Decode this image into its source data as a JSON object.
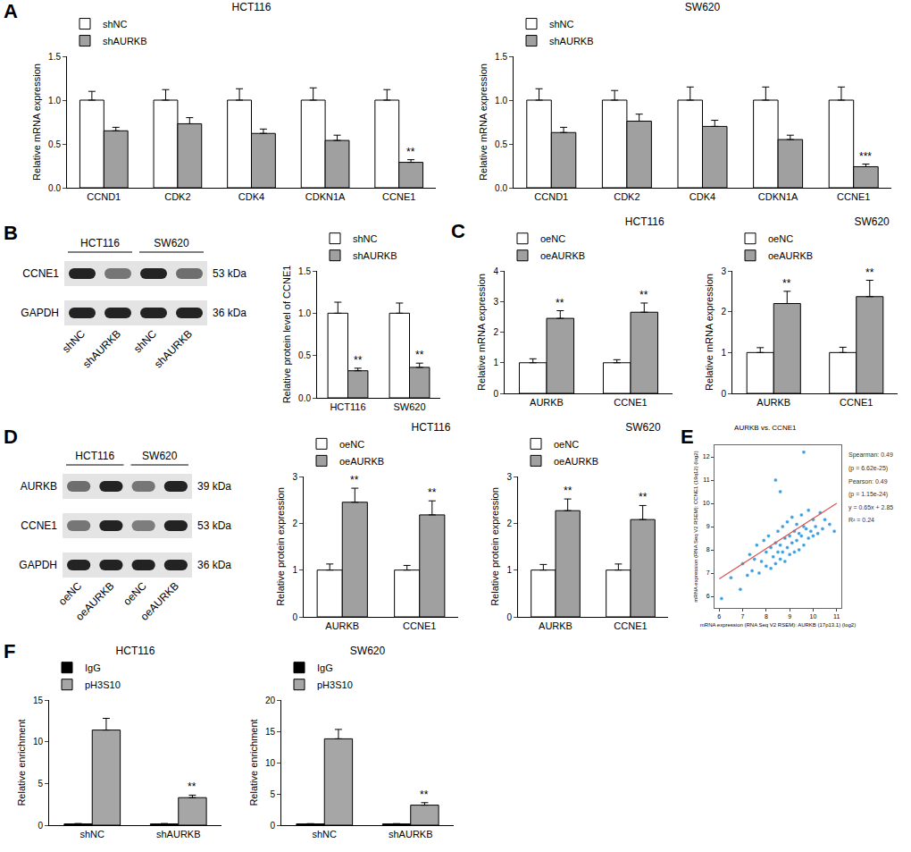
{
  "panel_labels": [
    "A",
    "B",
    "C",
    "D",
    "E",
    "F"
  ],
  "chart_data": [
    {
      "type": "bar",
      "title": "HCT116",
      "ylabel": "Relative mRNA expression",
      "categories": [
        "CCND1",
        "CDK2",
        "CDK4",
        "CDKN1A",
        "CCNE1"
      ],
      "series": [
        {
          "name": "shNC",
          "color": "#ffffff",
          "values": [
            1.0,
            1.0,
            1.0,
            1.0,
            1.0
          ],
          "errors": [
            0.1,
            0.12,
            0.13,
            0.14,
            0.12
          ],
          "significance": [
            null,
            null,
            null,
            null,
            null
          ]
        },
        {
          "name": "shAURKB",
          "color": "#a0a0a0",
          "values": [
            0.65,
            0.73,
            0.62,
            0.54,
            0.29
          ],
          "errors": [
            0.04,
            0.07,
            0.05,
            0.06,
            0.03
          ],
          "significance": [
            null,
            null,
            null,
            null,
            "**"
          ]
        }
      ],
      "ylim": [
        0,
        1.5
      ],
      "yticks": [
        {
          "value": 0,
          "label": "0.0"
        },
        {
          "value": 0.5,
          "label": "0.5"
        },
        {
          "value": 1,
          "label": "1.0"
        },
        {
          "value": 1.5,
          "label": "1.5"
        }
      ],
      "legend": "upper left"
    },
    {
      "type": "bar",
      "title": "SW620",
      "ylabel": "Relative mRNA expression",
      "categories": [
        "CCND1",
        "CDK2",
        "CDK4",
        "CDKN1A",
        "CCNE1"
      ],
      "series": [
        {
          "name": "shNC",
          "color": "#ffffff",
          "values": [
            1.0,
            1.0,
            1.0,
            1.0,
            1.0
          ],
          "errors": [
            0.13,
            0.11,
            0.15,
            0.15,
            0.15
          ],
          "significance": [
            null,
            null,
            null,
            null,
            null
          ]
        },
        {
          "name": "shAURKB",
          "color": "#a0a0a0",
          "values": [
            0.63,
            0.76,
            0.7,
            0.55,
            0.24
          ],
          "errors": [
            0.06,
            0.08,
            0.07,
            0.05,
            0.03
          ],
          "significance": [
            null,
            null,
            null,
            null,
            "***"
          ]
        }
      ],
      "ylim": [
        0,
        1.5
      ],
      "yticks": [
        {
          "value": 0,
          "label": "0.0"
        },
        {
          "value": 0.5,
          "label": "0.5"
        },
        {
          "value": 1,
          "label": "1.0"
        },
        {
          "value": 1.5,
          "label": "1.5"
        }
      ],
      "legend": "upper left"
    },
    {
      "type": "bar",
      "ylabel": "Relative protein level of CCNE1",
      "categories": [
        "HCT116",
        "SW620"
      ],
      "series": [
        {
          "name": "shNC",
          "color": "#ffffff",
          "values": [
            1.0,
            1.0
          ],
          "errors": [
            0.13,
            0.12
          ],
          "significance": [
            null,
            null
          ]
        },
        {
          "name": "shAURKB",
          "color": "#a0a0a0",
          "values": [
            0.32,
            0.36
          ],
          "errors": [
            0.03,
            0.05
          ],
          "significance": [
            "**",
            "**"
          ]
        }
      ],
      "ylim": [
        0,
        1.5
      ],
      "yticks": [
        {
          "value": 0,
          "label": "0.0"
        },
        {
          "value": 0.5,
          "label": "0.5"
        },
        {
          "value": 1,
          "label": "1.0"
        },
        {
          "value": 1.5,
          "label": "1.5"
        }
      ],
      "legend": "upper left"
    },
    {
      "type": "bar",
      "title": "HCT116",
      "ylabel": "Relative mRNA expression",
      "categories": [
        "AURKB",
        "CCNE1"
      ],
      "series": [
        {
          "name": "oeNC",
          "color": "#ffffff",
          "values": [
            1.0,
            1.0
          ],
          "errors": [
            0.13,
            0.1
          ],
          "significance": [
            null,
            null
          ]
        },
        {
          "name": "oeAURKB",
          "color": "#a0a0a0",
          "values": [
            2.45,
            2.65
          ],
          "errors": [
            0.25,
            0.3
          ],
          "significance": [
            "**",
            "**"
          ]
        }
      ],
      "ylim": [
        0,
        4
      ],
      "yticks": [
        0,
        1,
        2,
        3,
        4
      ],
      "legend": "upper left"
    },
    {
      "type": "bar",
      "title": "SW620",
      "ylabel": "Relative mRNA expression",
      "categories": [
        "AURKB",
        "CCNE1"
      ],
      "series": [
        {
          "name": "oeNC",
          "color": "#ffffff",
          "values": [
            1.0,
            1.0
          ],
          "errors": [
            0.12,
            0.13
          ],
          "significance": [
            null,
            null
          ]
        },
        {
          "name": "oeAURKB",
          "color": "#a0a0a0",
          "values": [
            2.2,
            2.37
          ],
          "errors": [
            0.3,
            0.4
          ],
          "significance": [
            "**",
            "**"
          ]
        }
      ],
      "ylim": [
        0,
        3
      ],
      "yticks": [
        0,
        1,
        2,
        3
      ],
      "legend": "upper left"
    },
    {
      "type": "bar",
      "title": "HCT116",
      "ylabel": "Relative protein expression",
      "categories": [
        "AURKB",
        "CCNE1"
      ],
      "series": [
        {
          "name": "oeNC",
          "color": "#ffffff",
          "values": [
            1.0,
            1.0
          ],
          "errors": [
            0.13,
            0.1
          ],
          "significance": [
            null,
            null
          ]
        },
        {
          "name": "oeAURKB",
          "color": "#a0a0a0",
          "values": [
            2.45,
            2.18
          ],
          "errors": [
            0.3,
            0.3
          ],
          "significance": [
            "**",
            "**"
          ]
        }
      ],
      "ylim": [
        0,
        3
      ],
      "yticks": [
        0,
        1,
        2,
        3
      ],
      "legend": "upper left"
    },
    {
      "type": "bar",
      "title": "SW620",
      "ylabel": "Relative protein expression",
      "categories": [
        "AURKB",
        "CCNE1"
      ],
      "series": [
        {
          "name": "oeNC",
          "color": "#ffffff",
          "values": [
            1.0,
            1.0
          ],
          "errors": [
            0.12,
            0.13
          ],
          "significance": [
            null,
            null
          ]
        },
        {
          "name": "oeAURKB",
          "color": "#a0a0a0",
          "values": [
            2.27,
            2.08
          ],
          "errors": [
            0.25,
            0.3
          ],
          "significance": [
            "**",
            "**"
          ]
        }
      ],
      "ylim": [
        0,
        3
      ],
      "yticks": [
        0,
        1,
        2,
        3
      ],
      "legend": "upper left"
    },
    {
      "type": "scatter",
      "title": "AURKB vs. CCNE1",
      "xlabel": "mRNA expression (RNA Seq V2 RSEM): AURKB (17p13.1) (log2)",
      "ylabel": "mRNA expression (RNA Seq V2 RSEM): CCNE1 (19q12) (log2)",
      "series": [
        {
          "type": "scatter",
          "marker": "circle",
          "color": "#3d9fe0",
          "x": [
            6.1,
            6.5,
            6.9,
            7.0,
            7.2,
            7.3,
            7.4,
            7.5,
            7.6,
            7.7,
            7.8,
            7.9,
            8.0,
            8.0,
            8.1,
            8.2,
            8.2,
            8.3,
            8.4,
            8.4,
            8.5,
            8.5,
            8.6,
            8.6,
            8.7,
            8.7,
            8.8,
            8.8,
            8.9,
            8.9,
            9.0,
            9.0,
            9.1,
            9.1,
            9.2,
            9.2,
            9.3,
            9.3,
            9.4,
            9.4,
            9.5,
            9.5,
            9.6,
            9.6,
            9.7,
            9.8,
            9.8,
            9.9,
            10.0,
            10.0,
            10.1,
            10.2,
            10.3,
            10.4,
            10.5,
            10.7,
            8.4,
            9.6,
            8.6,
            10.9
          ],
          "values": [
            5.9,
            6.8,
            6.3,
            7.4,
            6.9,
            7.8,
            7.1,
            7.6,
            8.2,
            7.0,
            7.5,
            8.4,
            7.3,
            7.9,
            8.6,
            7.2,
            8.1,
            7.7,
            8.3,
            7.4,
            7.9,
            8.8,
            7.6,
            8.2,
            7.9,
            9.0,
            7.5,
            8.5,
            8.1,
            9.2,
            7.8,
            8.6,
            8.3,
            9.4,
            7.9,
            8.8,
            8.4,
            9.1,
            8.0,
            8.7,
            8.6,
            9.5,
            8.2,
            9.0,
            8.9,
            8.5,
            9.7,
            8.8,
            8.6,
            9.3,
            9.0,
            8.7,
            9.6,
            8.9,
            9.3,
            9.1,
            11.0,
            12.2,
            10.5,
            8.8
          ]
        },
        {
          "type": "line",
          "line_style": "solid",
          "color": "#d9534f",
          "x": [
            6,
            11
          ],
          "values": [
            6.75,
            10.0
          ]
        }
      ],
      "annotations": [
        "Spearman: 0.49",
        "(p = 6.62e-25)",
        "Pearson: 0.49",
        "(p = 1.15e-24)",
        "y = 0.65x + 2.85",
        "R² = 0.24"
      ],
      "xlim": [
        5.8,
        11.2
      ],
      "xticks": [
        6,
        7,
        8,
        9,
        10,
        11
      ],
      "ylim": [
        5.5,
        12.5
      ],
      "yticks": [
        6,
        7,
        8,
        9,
        10,
        11,
        12
      ]
    },
    {
      "type": "bar",
      "title": "HCT116",
      "ylabel": "Relative enrichment",
      "categories": [
        "shNC",
        "shAURKB"
      ],
      "series": [
        {
          "name": "IgG",
          "color": "#000000",
          "values": [
            0.15,
            0.15
          ],
          "errors": [
            0.05,
            0.05
          ],
          "significance": [
            null,
            null
          ]
        },
        {
          "name": "pH3S10",
          "color": "#a6a6a6",
          "values": [
            11.4,
            3.3
          ],
          "errors": [
            1.4,
            0.3
          ],
          "significance": [
            null,
            "**"
          ]
        }
      ],
      "ylim": [
        0,
        15
      ],
      "yticks": [
        0,
        5,
        10,
        15
      ],
      "legend": "upper left"
    },
    {
      "type": "bar",
      "title": "SW620",
      "ylabel": "Relative enrichment",
      "categories": [
        "shNC",
        "shAURKB"
      ],
      "series": [
        {
          "name": "IgG",
          "color": "#000000",
          "values": [
            0.2,
            0.2
          ],
          "errors": [
            0.05,
            0.05
          ],
          "significance": [
            null,
            null
          ]
        },
        {
          "name": "pH3S10",
          "color": "#a6a6a6",
          "values": [
            13.8,
            3.2
          ],
          "errors": [
            1.5,
            0.4
          ],
          "significance": [
            null,
            "**"
          ]
        }
      ],
      "ylim": [
        0,
        20
      ],
      "yticks": [
        0,
        5,
        10,
        15,
        20
      ],
      "legend": "upper left"
    }
  ],
  "blots": [
    {
      "groups": [
        "HCT116",
        "SW620"
      ],
      "lanes": [
        "shNC",
        "shAURKB",
        "shNC",
        "shAURKB"
      ],
      "rows": [
        {
          "protein": "CCNE1",
          "size": "53 kDa",
          "intensity": [
            1,
            0.45,
            1,
            0.5
          ]
        },
        {
          "protein": "GAPDH",
          "size": "36 kDa",
          "intensity": [
            1,
            1,
            1,
            1
          ]
        }
      ]
    },
    {
      "groups": [
        "HCT116",
        "SW620"
      ],
      "lanes": [
        "oeNC",
        "oeAURKB",
        "oeNC",
        "oeAURKB"
      ],
      "rows": [
        {
          "protein": "AURKB",
          "size": "39 kDa",
          "intensity": [
            0.5,
            1,
            0.45,
            1
          ]
        },
        {
          "protein": "CCNE1",
          "size": "53 kDa",
          "intensity": [
            0.45,
            1,
            0.4,
            1
          ]
        },
        {
          "protein": "GAPDH",
          "size": "36 kDa",
          "intensity": [
            1,
            1,
            1,
            1
          ]
        }
      ]
    }
  ]
}
